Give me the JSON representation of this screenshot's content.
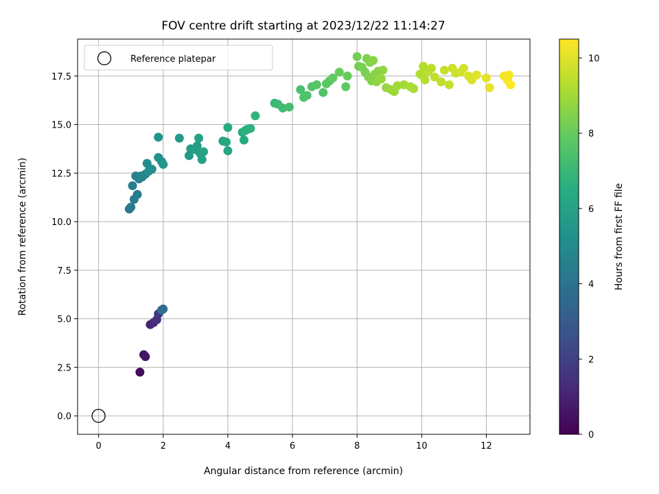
{
  "chart_data": {
    "type": "scatter",
    "title": "FOV centre drift starting at 2023/12/22 11:14:27",
    "xlabel": "Angular distance from reference (arcmin)",
    "ylabel": "Rotation from reference (arcmin)",
    "xlim": [
      -0.65,
      13.35
    ],
    "ylim": [
      -0.95,
      19.4
    ],
    "xticks": [
      0,
      2,
      4,
      6,
      8,
      10,
      12
    ],
    "yticks": [
      0.0,
      2.5,
      5.0,
      7.5,
      10.0,
      12.5,
      15.0,
      17.5
    ],
    "xtick_labels": [
      "0",
      "2",
      "4",
      "6",
      "8",
      "10",
      "12"
    ],
    "ytick_labels": [
      "0.0",
      "2.5",
      "5.0",
      "7.5",
      "10.0",
      "12.5",
      "15.0",
      "17.5"
    ],
    "grid": true,
    "legend_position": "top-left",
    "legend": [
      "Reference platepar"
    ],
    "colorbar": {
      "label": "Hours from first FF file",
      "range": [
        0,
        10.5
      ],
      "ticks": [
        0,
        2,
        4,
        6,
        8,
        10
      ],
      "tick_labels": [
        "0",
        "2",
        "4",
        "6",
        "8",
        "10"
      ],
      "colormap": "viridis"
    },
    "reference_point": {
      "x": 0,
      "y": 0
    },
    "series": [
      {
        "name": "Reference platepar",
        "x": [
          0
        ],
        "y": [
          0
        ]
      },
      {
        "x": [
          1.28,
          1.4,
          1.45,
          1.6,
          1.7,
          1.8,
          1.85,
          1.95,
          2.0,
          0.95,
          1.0,
          1.05,
          1.1,
          1.15,
          1.2,
          1.25,
          1.3,
          1.35,
          1.45,
          1.5,
          1.55,
          1.65,
          1.85,
          1.95,
          2.0,
          1.85,
          2.5,
          2.8,
          2.85,
          3.0,
          3.05,
          3.1,
          3.15,
          3.2,
          3.25,
          3.85,
          3.95,
          4.0,
          4.0,
          4.45,
          4.5,
          4.55,
          4.6,
          4.7,
          4.85,
          5.45,
          5.55,
          5.7,
          5.9,
          6.25,
          6.35,
          6.45,
          6.6,
          6.75,
          6.95,
          7.05,
          7.15,
          7.25,
          7.45,
          7.65,
          7.7,
          8.0,
          8.05,
          8.15,
          8.25,
          8.3,
          8.35,
          8.4,
          8.45,
          8.5,
          8.55,
          8.6,
          8.65,
          8.7,
          8.75,
          8.8,
          8.9,
          9.05,
          9.15,
          9.25,
          9.45,
          9.65,
          9.75,
          9.95,
          10.0,
          10.05,
          10.1,
          10.2,
          10.3,
          10.4,
          10.6,
          10.7,
          10.85,
          10.95,
          11.05,
          11.2,
          11.3,
          11.45,
          11.55,
          11.7,
          12.0,
          12.1,
          12.55,
          12.65,
          12.7,
          12.75
        ],
        "y": [
          2.25,
          3.15,
          3.05,
          4.7,
          4.8,
          4.95,
          5.25,
          5.45,
          5.5,
          10.65,
          10.75,
          11.85,
          11.15,
          12.35,
          11.4,
          12.2,
          12.35,
          12.3,
          12.45,
          13.0,
          12.6,
          12.7,
          14.35,
          13.1,
          12.95,
          13.3,
          14.3,
          13.4,
          13.75,
          13.7,
          13.9,
          14.3,
          13.5,
          13.2,
          13.6,
          14.15,
          14.1,
          13.65,
          14.85,
          14.6,
          14.2,
          14.7,
          14.75,
          14.8,
          15.45,
          16.1,
          16.05,
          15.85,
          15.9,
          16.8,
          16.4,
          16.5,
          16.95,
          17.05,
          16.65,
          17.1,
          17.25,
          17.4,
          17.7,
          16.95,
          17.5,
          18.5,
          18.0,
          17.95,
          17.7,
          18.4,
          17.45,
          18.2,
          17.25,
          18.3,
          17.6,
          17.2,
          17.75,
          17.4,
          17.35,
          17.8,
          16.9,
          16.8,
          16.7,
          17.0,
          17.05,
          16.95,
          16.85,
          17.6,
          17.55,
          18.0,
          17.3,
          17.75,
          17.9,
          17.45,
          17.2,
          17.8,
          17.05,
          17.9,
          17.65,
          17.7,
          17.9,
          17.5,
          17.3,
          17.55,
          17.4,
          16.9,
          17.5,
          17.3,
          17.55,
          17.05
        ],
        "c": [
          0.3,
          0.5,
          0.6,
          1.0,
          1.2,
          1.4,
          1.6,
          3.6,
          3.8,
          4.2,
          4.3,
          4.4,
          4.3,
          4.5,
          4.4,
          4.6,
          4.7,
          4.8,
          4.9,
          5.0,
          5.1,
          5.2,
          5.4,
          5.3,
          5.5,
          5.3,
          5.6,
          5.7,
          5.8,
          5.9,
          5.8,
          6.0,
          5.9,
          6.0,
          6.1,
          6.2,
          6.3,
          6.2,
          6.4,
          6.5,
          6.4,
          6.6,
          6.6,
          6.7,
          6.8,
          7.0,
          7.1,
          7.2,
          7.3,
          7.4,
          7.5,
          7.5,
          7.6,
          7.7,
          7.6,
          7.8,
          7.8,
          7.9,
          8.0,
          7.9,
          8.0,
          8.2,
          8.2,
          8.3,
          8.3,
          8.4,
          8.4,
          8.5,
          8.5,
          8.6,
          8.6,
          8.7,
          8.6,
          8.7,
          8.8,
          8.7,
          8.8,
          8.9,
          8.9,
          9.0,
          9.0,
          9.1,
          9.1,
          9.2,
          9.2,
          9.3,
          9.3,
          9.4,
          9.4,
          9.5,
          9.5,
          9.6,
          9.6,
          9.7,
          9.7,
          9.8,
          9.8,
          9.9,
          9.9,
          10.0,
          10.1,
          10.1,
          10.3,
          10.4,
          10.4,
          10.5
        ]
      }
    ]
  }
}
